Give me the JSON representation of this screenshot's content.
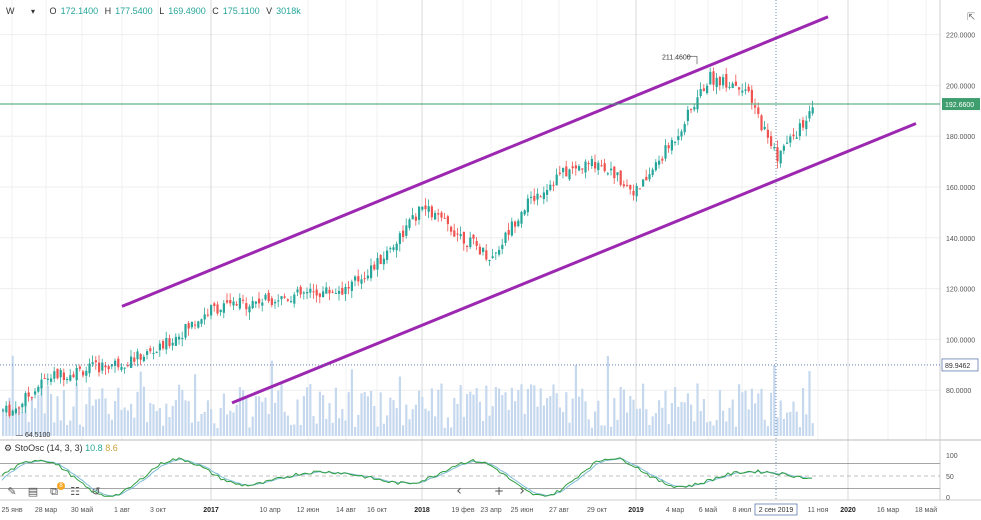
{
  "header": {
    "symbol": "W",
    "dropdown_glyph": "▾",
    "open_label": "O",
    "open": "172.1400",
    "high_label": "H",
    "high": "177.5400",
    "low_label": "L",
    "low": "169.4900",
    "close_label": "C",
    "close": "175.1100",
    "volume_label": "V",
    "volume": "3018k"
  },
  "oscillator": {
    "name": "StoOsc (14, 3, 3)",
    "k_value": "10.8",
    "d_value": "8.6",
    "scale_labels": [
      "100",
      "50",
      "0"
    ]
  },
  "price_axis": {
    "labels": [
      "220.0000",
      "200.0000",
      "180.0000",
      "160.0000",
      "140.0000",
      "120.0000",
      "100.0000",
      "80.0000"
    ],
    "current_price_label": "192.6600",
    "cursor_price_label": "89.9462"
  },
  "time_axis": {
    "labels": [
      "25 янв",
      "28 мар",
      "30 май",
      "1 авг",
      "3 окт",
      "2017",
      "10 апр",
      "12 июн",
      "14 авг",
      "16 окт",
      "2018",
      "19 фев",
      "23 апр",
      "25 июн",
      "27 авг",
      "29 окт",
      "2019",
      "4 мар",
      "6 май",
      "8 июл",
      "11 ноя",
      "2020",
      "16 мар",
      "18 май"
    ],
    "cursor_date_label": "2 сен 2019"
  },
  "annotations": {
    "high_marker": "211.4600",
    "low_marker": "64.5100"
  },
  "toolbar": {
    "icons": [
      "pencil-icon",
      "document-icon",
      "layers-icon",
      "settings-icon",
      "undo-icon"
    ],
    "badge": "8"
  },
  "nav": {
    "left_arrow": "‹",
    "plus": "+",
    "right_arrow": "›"
  },
  "colors": {
    "up": "#26a69a",
    "down": "#ef5350",
    "channel": "#9c27b0",
    "volume": "#c6d8ee",
    "price_line": "#3f9e6d",
    "k_line": "#2e9d3e",
    "d_line": "#7fbcd6"
  },
  "chart_data": {
    "type": "candlestick",
    "ylim": [
      60,
      230
    ],
    "x_ticks": [
      "25 янв",
      "28 мар",
      "30 май",
      "1 авг",
      "3 окт",
      "2017",
      "10 апр",
      "12 июн",
      "14 авг",
      "16 окт",
      "2018",
      "19 фев",
      "23 апр",
      "25 июн",
      "27 авг",
      "29 окт",
      "2019",
      "4 мар",
      "6 май",
      "8 июл",
      "11 ноя",
      "2020",
      "16 мар",
      "18 май"
    ],
    "close_path": [
      [
        "25 янв",
        72
      ],
      [
        "28 мар",
        85
      ],
      [
        "30 май",
        88
      ],
      [
        "1 авг",
        91
      ],
      [
        "3 окт",
        96
      ],
      [
        "2017",
        112
      ],
      [
        "10 апр",
        116
      ],
      [
        "12 июн",
        118
      ],
      [
        "14 авг",
        120
      ],
      [
        "16 окт",
        130
      ],
      [
        "2018",
        152
      ],
      [
        "19 фев",
        140
      ],
      [
        "23 апр",
        132
      ],
      [
        "25 июн",
        152
      ],
      [
        "27 авг",
        165
      ],
      [
        "29 окт",
        170
      ],
      [
        "2019",
        158
      ],
      [
        "4 мар",
        180
      ],
      [
        "6 май",
        203
      ],
      [
        "8 июл",
        200
      ],
      [
        "2 сен 2019",
        172
      ],
      [
        "11 ноя",
        192.66
      ]
    ],
    "channel_upper": [
      [
        85,
        113
      ],
      [
        395,
        227
      ]
    ],
    "channel_lower": [
      [
        150,
        75
      ],
      [
        410,
        185
      ]
    ],
    "last_price": 192.66,
    "marked_high": 211.46,
    "marked_low": 64.51,
    "horizontal_level": 89.9462,
    "stochastic": {
      "k_last": 10.8,
      "d_last": 8.6,
      "levels": [
        80,
        50,
        20
      ]
    }
  }
}
